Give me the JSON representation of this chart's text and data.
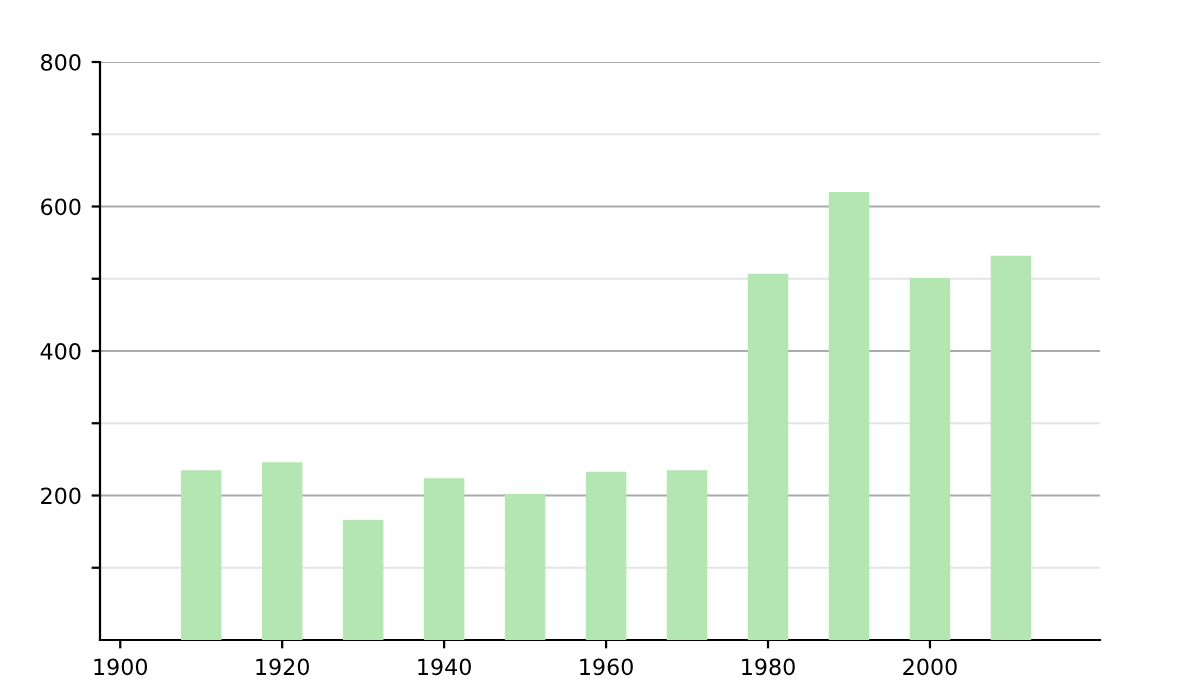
{
  "chart_data": {
    "type": "bar",
    "x": [
      1910,
      1920,
      1930,
      1940,
      1950,
      1960,
      1970,
      1980,
      1990,
      2000,
      2010
    ],
    "values": [
      235,
      246,
      166,
      224,
      202,
      233,
      235,
      507,
      620,
      501,
      532
    ],
    "color": "#b3e6b0",
    "xlim": [
      1897.5,
      2021
    ],
    "xticks": [
      1900,
      1920,
      1940,
      1960,
      1980,
      2000
    ],
    "ylim": [
      0,
      800
    ],
    "yticks": [
      {
        "value": 100,
        "label": null
      },
      200,
      {
        "value": 300,
        "label": null
      },
      400,
      {
        "value": 500,
        "label": null
      },
      600,
      {
        "value": 700,
        "label": null
      },
      800
    ],
    "grid": "y"
  }
}
